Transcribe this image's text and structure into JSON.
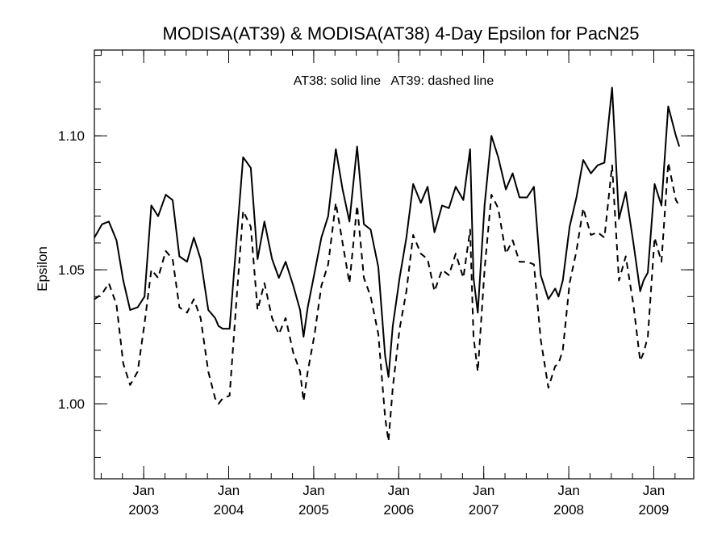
{
  "chart_data": {
    "type": "line",
    "title": "MODISA(AT39) & MODISA(AT38) 4-Day Epsilon for PacN25",
    "annotation": "AT38: solid line   AT39: dashed line",
    "xlabel": "",
    "ylabel": "Epsilon",
    "xlim": [
      2002.42,
      2009.47
    ],
    "ylim": [
      0.972,
      1.132
    ],
    "y_ticks": [
      1.0,
      1.05,
      1.1
    ],
    "y_tick_labels": [
      "1.00",
      "1.05",
      "1.10"
    ],
    "y_minor_step": 0.01,
    "x_major_ticks": [
      2003,
      2004,
      2005,
      2006,
      2007,
      2008,
      2009
    ],
    "x_tick_labels": [
      {
        "month": "Jan",
        "year": "2003"
      },
      {
        "month": "Jan",
        "year": "2004"
      },
      {
        "month": "Jan",
        "year": "2005"
      },
      {
        "month": "Jan",
        "year": "2006"
      },
      {
        "month": "Jan",
        "year": "2007"
      },
      {
        "month": "Jan",
        "year": "2008"
      },
      {
        "month": "Jan",
        "year": "2009"
      }
    ],
    "x_minor_step": 0.25,
    "grid": false,
    "series": [
      {
        "label": "AT38",
        "style": "solid",
        "points": [
          [
            2002.42,
            1.062
          ],
          [
            2002.51,
            1.067
          ],
          [
            2002.59,
            1.068
          ],
          [
            2002.68,
            1.061
          ],
          [
            2002.76,
            1.046
          ],
          [
            2002.84,
            1.035
          ],
          [
            2002.93,
            1.036
          ],
          [
            2003.01,
            1.04
          ],
          [
            2003.09,
            1.074
          ],
          [
            2003.17,
            1.07
          ],
          [
            2003.26,
            1.078
          ],
          [
            2003.34,
            1.076
          ],
          [
            2003.42,
            1.055
          ],
          [
            2003.51,
            1.053
          ],
          [
            2003.59,
            1.062
          ],
          [
            2003.67,
            1.054
          ],
          [
            2003.76,
            1.035
          ],
          [
            2003.84,
            1.032
          ],
          [
            2003.88,
            1.029
          ],
          [
            2003.93,
            1.028
          ],
          [
            2004.01,
            1.028
          ],
          [
            2004.09,
            1.06
          ],
          [
            2004.17,
            1.092
          ],
          [
            2004.26,
            1.088
          ],
          [
            2004.34,
            1.054
          ],
          [
            2004.42,
            1.068
          ],
          [
            2004.51,
            1.054
          ],
          [
            2004.59,
            1.047
          ],
          [
            2004.67,
            1.053
          ],
          [
            2004.76,
            1.044
          ],
          [
            2004.84,
            1.035
          ],
          [
            2004.88,
            1.025
          ],
          [
            2004.93,
            1.036
          ],
          [
            2005.01,
            1.049
          ],
          [
            2005.09,
            1.062
          ],
          [
            2005.17,
            1.07
          ],
          [
            2005.26,
            1.095
          ],
          [
            2005.34,
            1.08
          ],
          [
            2005.42,
            1.068
          ],
          [
            2005.51,
            1.096
          ],
          [
            2005.59,
            1.067
          ],
          [
            2005.67,
            1.065
          ],
          [
            2005.76,
            1.051
          ],
          [
            2005.84,
            1.018
          ],
          [
            2005.88,
            1.01
          ],
          [
            2005.93,
            1.029
          ],
          [
            2006.01,
            1.047
          ],
          [
            2006.09,
            1.062
          ],
          [
            2006.17,
            1.082
          ],
          [
            2006.26,
            1.075
          ],
          [
            2006.34,
            1.081
          ],
          [
            2006.42,
            1.064
          ],
          [
            2006.51,
            1.074
          ],
          [
            2006.59,
            1.073
          ],
          [
            2006.67,
            1.081
          ],
          [
            2006.76,
            1.076
          ],
          [
            2006.84,
            1.095
          ],
          [
            2006.88,
            1.047
          ],
          [
            2006.93,
            1.034
          ],
          [
            2007.01,
            1.074
          ],
          [
            2007.09,
            1.1
          ],
          [
            2007.17,
            1.092
          ],
          [
            2007.26,
            1.08
          ],
          [
            2007.34,
            1.086
          ],
          [
            2007.42,
            1.077
          ],
          [
            2007.51,
            1.077
          ],
          [
            2007.59,
            1.081
          ],
          [
            2007.67,
            1.048
          ],
          [
            2007.76,
            1.039
          ],
          [
            2007.84,
            1.043
          ],
          [
            2007.88,
            1.04
          ],
          [
            2007.93,
            1.046
          ],
          [
            2008.01,
            1.066
          ],
          [
            2008.09,
            1.077
          ],
          [
            2008.17,
            1.091
          ],
          [
            2008.26,
            1.086
          ],
          [
            2008.34,
            1.089
          ],
          [
            2008.42,
            1.09
          ],
          [
            2008.51,
            1.118
          ],
          [
            2008.59,
            1.069
          ],
          [
            2008.67,
            1.079
          ],
          [
            2008.76,
            1.06
          ],
          [
            2008.84,
            1.042
          ],
          [
            2008.88,
            1.046
          ],
          [
            2008.93,
            1.049
          ],
          [
            2009.01,
            1.082
          ],
          [
            2009.09,
            1.074
          ],
          [
            2009.17,
            1.111
          ],
          [
            2009.26,
            1.1
          ],
          [
            2009.3,
            1.096
          ]
        ]
      },
      {
        "label": "AT39",
        "style": "dashed",
        "points": [
          [
            2002.42,
            1.039
          ],
          [
            2002.51,
            1.041
          ],
          [
            2002.59,
            1.045
          ],
          [
            2002.68,
            1.037
          ],
          [
            2002.76,
            1.015
          ],
          [
            2002.84,
            1.007
          ],
          [
            2002.93,
            1.012
          ],
          [
            2003.01,
            1.03
          ],
          [
            2003.09,
            1.05
          ],
          [
            2003.17,
            1.047
          ],
          [
            2003.26,
            1.057
          ],
          [
            2003.34,
            1.054
          ],
          [
            2003.42,
            1.036
          ],
          [
            2003.51,
            1.034
          ],
          [
            2003.59,
            1.039
          ],
          [
            2003.67,
            1.032
          ],
          [
            2003.76,
            1.012
          ],
          [
            2003.84,
            1.002
          ],
          [
            2003.88,
            1.0
          ],
          [
            2003.93,
            1.002
          ],
          [
            2004.01,
            1.003
          ],
          [
            2004.09,
            1.038
          ],
          [
            2004.17,
            1.072
          ],
          [
            2004.26,
            1.066
          ],
          [
            2004.34,
            1.035
          ],
          [
            2004.42,
            1.045
          ],
          [
            2004.51,
            1.032
          ],
          [
            2004.59,
            1.026
          ],
          [
            2004.67,
            1.032
          ],
          [
            2004.76,
            1.019
          ],
          [
            2004.84,
            1.012
          ],
          [
            2004.88,
            1.001
          ],
          [
            2004.93,
            1.012
          ],
          [
            2005.01,
            1.026
          ],
          [
            2005.09,
            1.044
          ],
          [
            2005.17,
            1.052
          ],
          [
            2005.26,
            1.075
          ],
          [
            2005.34,
            1.06
          ],
          [
            2005.42,
            1.045
          ],
          [
            2005.51,
            1.074
          ],
          [
            2005.59,
            1.047
          ],
          [
            2005.67,
            1.04
          ],
          [
            2005.76,
            1.026
          ],
          [
            2005.84,
            0.995
          ],
          [
            2005.88,
            0.986
          ],
          [
            2005.93,
            1.006
          ],
          [
            2006.01,
            1.028
          ],
          [
            2006.09,
            1.042
          ],
          [
            2006.17,
            1.063
          ],
          [
            2006.26,
            1.056
          ],
          [
            2006.34,
            1.054
          ],
          [
            2006.42,
            1.042
          ],
          [
            2006.51,
            1.05
          ],
          [
            2006.59,
            1.048
          ],
          [
            2006.67,
            1.056
          ],
          [
            2006.76,
            1.047
          ],
          [
            2006.84,
            1.065
          ],
          [
            2006.88,
            1.025
          ],
          [
            2006.93,
            1.012
          ],
          [
            2007.01,
            1.05
          ],
          [
            2007.09,
            1.078
          ],
          [
            2007.17,
            1.073
          ],
          [
            2007.26,
            1.056
          ],
          [
            2007.34,
            1.061
          ],
          [
            2007.42,
            1.053
          ],
          [
            2007.51,
            1.053
          ],
          [
            2007.59,
            1.052
          ],
          [
            2007.67,
            1.024
          ],
          [
            2007.76,
            1.006
          ],
          [
            2007.84,
            1.014
          ],
          [
            2007.88,
            1.015
          ],
          [
            2007.93,
            1.02
          ],
          [
            2008.01,
            1.045
          ],
          [
            2008.09,
            1.057
          ],
          [
            2008.17,
            1.073
          ],
          [
            2008.26,
            1.063
          ],
          [
            2008.34,
            1.064
          ],
          [
            2008.42,
            1.062
          ],
          [
            2008.51,
            1.089
          ],
          [
            2008.59,
            1.046
          ],
          [
            2008.67,
            1.055
          ],
          [
            2008.76,
            1.037
          ],
          [
            2008.84,
            1.016
          ],
          [
            2008.88,
            1.019
          ],
          [
            2008.93,
            1.025
          ],
          [
            2009.01,
            1.062
          ],
          [
            2009.09,
            1.053
          ],
          [
            2009.17,
            1.09
          ],
          [
            2009.26,
            1.076
          ],
          [
            2009.3,
            1.074
          ]
        ]
      }
    ]
  }
}
